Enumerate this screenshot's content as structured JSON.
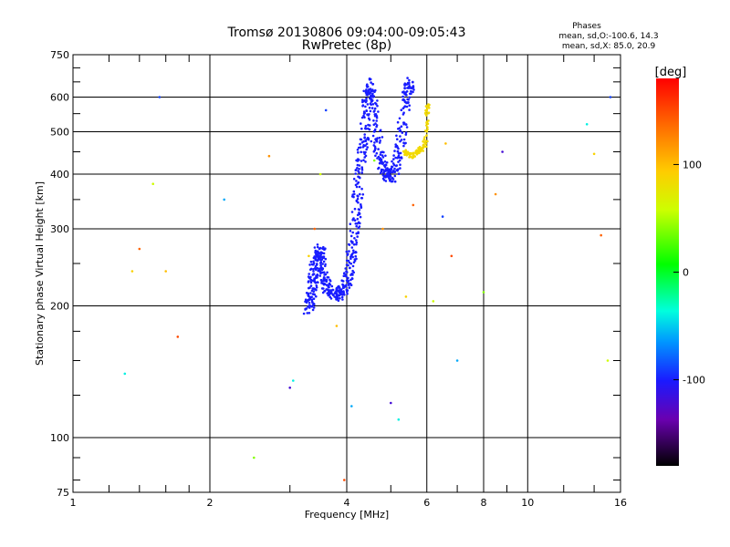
{
  "chart_data": {
    "type": "scatter",
    "title": "Tromsø 20130806 09:04:00-09:05:43",
    "subtitle": "RwPretec (8p)",
    "xlabel": "Frequency [MHz]",
    "ylabel": "Stationary phase Virtual Height [km]",
    "x_scale": "log",
    "y_scale": "log",
    "xlim": [
      1,
      16
    ],
    "ylim": [
      75,
      750
    ],
    "x_ticks": [
      1,
      2,
      4,
      6,
      8,
      10,
      16
    ],
    "y_ticks": [
      75,
      100,
      200,
      300,
      400,
      500,
      600,
      750
    ],
    "grid": true,
    "phase_summary": {
      "title": "Phases",
      "line_o": "mean, sd,O:-100.6, 14.3",
      "line_x": "mean, sd,X:  85.0, 20.9"
    },
    "colorbar": {
      "label": "[deg]",
      "ticks": [
        100,
        0,
        -100
      ],
      "range": [
        -180,
        180
      ]
    },
    "o_trace_phase_deg": -100,
    "x_trace_phase_deg": 85,
    "o_trace": [
      [
        3.3,
        198
      ],
      [
        3.32,
        205
      ],
      [
        3.35,
        215
      ],
      [
        3.38,
        230
      ],
      [
        3.4,
        245
      ],
      [
        3.45,
        260
      ],
      [
        3.5,
        270
      ],
      [
        3.52,
        250
      ],
      [
        3.55,
        235
      ],
      [
        3.6,
        222
      ],
      [
        3.7,
        215
      ],
      [
        3.8,
        212
      ],
      [
        3.9,
        215
      ],
      [
        4.0,
        225
      ],
      [
        4.05,
        240
      ],
      [
        4.1,
        260
      ],
      [
        4.15,
        290
      ],
      [
        4.2,
        330
      ],
      [
        4.25,
        380
      ],
      [
        4.3,
        430
      ],
      [
        4.35,
        470
      ],
      [
        4.4,
        520
      ],
      [
        4.45,
        600
      ],
      [
        4.5,
        640
      ],
      [
        4.55,
        580
      ],
      [
        4.6,
        510
      ],
      [
        4.7,
        460
      ],
      [
        4.8,
        420
      ],
      [
        4.9,
        400
      ],
      [
        5.0,
        395
      ],
      [
        5.1,
        410
      ],
      [
        5.2,
        440
      ],
      [
        5.3,
        500
      ],
      [
        5.4,
        580
      ],
      [
        5.45,
        630
      ],
      [
        5.5,
        650
      ]
    ],
    "x_trace": [
      [
        5.35,
        450
      ],
      [
        5.45,
        445
      ],
      [
        5.55,
        440
      ],
      [
        5.65,
        445
      ],
      [
        5.75,
        452
      ],
      [
        5.85,
        458
      ],
      [
        5.95,
        470
      ],
      [
        6.0,
        520
      ],
      [
        6.02,
        560
      ],
      [
        6.04,
        575
      ]
    ],
    "scattered_points": [
      [
        1.3,
        140
      ],
      [
        1.35,
        240
      ],
      [
        1.4,
        270
      ],
      [
        1.5,
        380
      ],
      [
        1.55,
        600
      ],
      [
        1.6,
        240
      ],
      [
        1.7,
        170
      ],
      [
        2.15,
        350
      ],
      [
        2.5,
        90
      ],
      [
        2.7,
        440
      ],
      [
        3.0,
        130
      ],
      [
        3.05,
        135
      ],
      [
        3.3,
        260
      ],
      [
        3.4,
        300
      ],
      [
        3.5,
        400
      ],
      [
        3.6,
        560
      ],
      [
        3.8,
        180
      ],
      [
        3.95,
        80
      ],
      [
        4.1,
        118
      ],
      [
        4.6,
        430
      ],
      [
        4.8,
        300
      ],
      [
        5.0,
        120
      ],
      [
        5.2,
        110
      ],
      [
        5.4,
        210
      ],
      [
        5.6,
        340
      ],
      [
        6.2,
        205
      ],
      [
        6.5,
        320
      ],
      [
        6.6,
        470
      ],
      [
        6.8,
        260
      ],
      [
        7.0,
        150
      ],
      [
        8.0,
        215
      ],
      [
        8.5,
        360
      ],
      [
        8.8,
        450
      ],
      [
        13.5,
        520
      ],
      [
        14.0,
        445
      ],
      [
        14.5,
        290
      ],
      [
        15.0,
        150
      ],
      [
        15.2,
        600
      ]
    ]
  }
}
